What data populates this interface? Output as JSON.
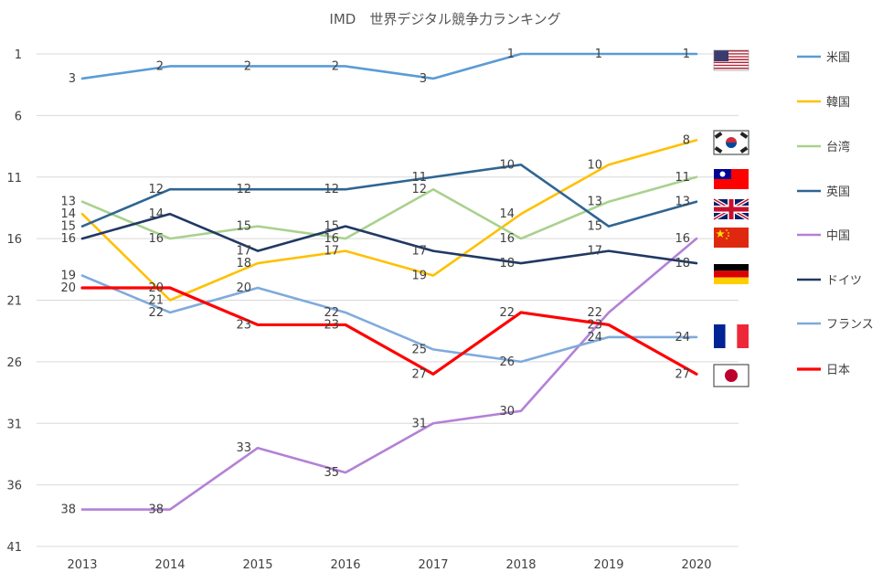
{
  "chart_data": {
    "type": "line",
    "title": "IMD　世界デジタル競争力ランキング",
    "xlabel": "",
    "ylabel": "",
    "categories": [
      "2013",
      "2014",
      "2015",
      "2016",
      "2017",
      "2018",
      "2019",
      "2020"
    ],
    "y_ticks": [
      "1",
      "6",
      "11",
      "16",
      "21",
      "26",
      "31",
      "36",
      "41"
    ],
    "ylim": [
      1,
      41
    ],
    "y_inverted": true,
    "grid": true,
    "legend_position": "right",
    "series": [
      {
        "name": "米国",
        "color": "#5b9bd5",
        "values": [
          3,
          2,
          2,
          2,
          3,
          1,
          1,
          1
        ],
        "flag": "flag-usa-icon"
      },
      {
        "name": "韓国",
        "color": "#ffc000",
        "values": [
          14,
          21,
          18,
          17,
          19,
          14,
          10,
          8
        ],
        "flag": "flag-korea-icon"
      },
      {
        "name": "台湾",
        "color": "#a9d18e",
        "values": [
          13,
          16,
          15,
          16,
          12,
          16,
          13,
          11
        ],
        "flag": "flag-taiwan-icon"
      },
      {
        "name": "英国",
        "color": "#2e6592",
        "values": [
          15,
          12,
          12,
          12,
          11,
          10,
          15,
          13
        ],
        "flag": "flag-uk-icon"
      },
      {
        "name": "中国",
        "color": "#b381d6",
        "values": [
          38,
          38,
          33,
          35,
          31,
          30,
          22,
          16
        ],
        "flag": "flag-china-icon"
      },
      {
        "name": "ドイツ",
        "color": "#203864",
        "values": [
          16,
          14,
          17,
          15,
          17,
          18,
          17,
          18
        ],
        "flag": "flag-germany-icon"
      },
      {
        "name": "フランス",
        "color": "#7faadc",
        "values": [
          19,
          22,
          20,
          22,
          25,
          26,
          24,
          24
        ],
        "flag": "flag-france-icon"
      },
      {
        "name": "日本",
        "color": "#ff0000",
        "values": [
          20,
          20,
          23,
          23,
          27,
          22,
          23,
          27
        ],
        "flag": "flag-japan-icon"
      }
    ]
  }
}
